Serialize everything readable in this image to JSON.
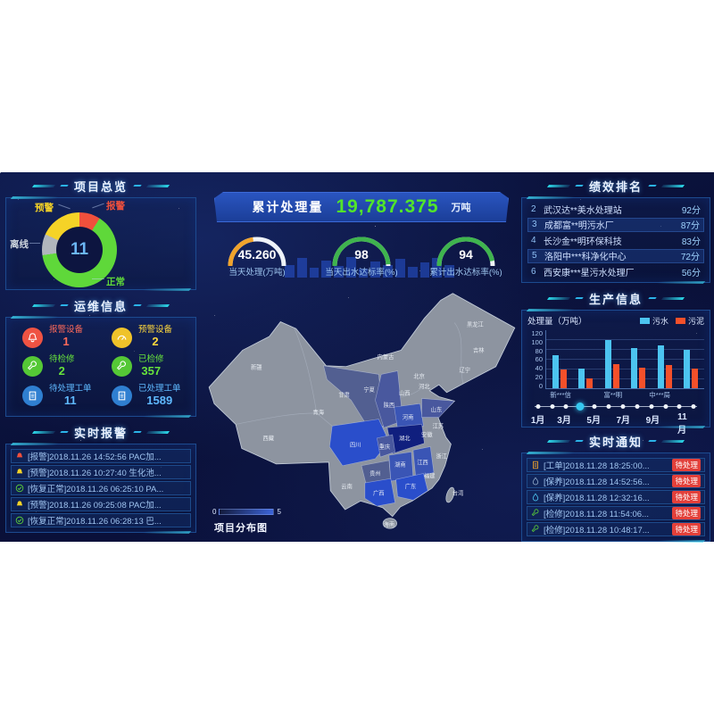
{
  "colors": {
    "background": "#0a1038",
    "panel_border": "#1c4a8f",
    "accent_cyan": "#2bd7e8",
    "text_light": "#cfe3ff",
    "status_red": "#f0503c",
    "status_yellow": "#f5d327",
    "status_green": "#5fd83a",
    "status_gray": "#b0b6bd",
    "banner_value_green": "#52e52a",
    "bar_sewage_cyan": "#4cc4f0",
    "bar_sludge_red": "#f4502a",
    "badge_red": "#e3403a"
  },
  "left": {
    "overview": {
      "title": "项目总览",
      "donut_center": "11",
      "labels": {
        "warning": "预警",
        "alarm": "报警",
        "offline": "离线",
        "normal": "正常"
      }
    },
    "ops": {
      "title": "运维信息",
      "stats": [
        {
          "label": "报警设备",
          "value": "1",
          "icon": "alarm-bell-icon",
          "color": "#ff6a5a"
        },
        {
          "label": "预警设备",
          "value": "2",
          "icon": "gauge-icon",
          "color": "#ffd83d"
        },
        {
          "label": "待检修",
          "value": "2",
          "icon": "wrench-icon",
          "color": "#67e23c"
        },
        {
          "label": "已检修",
          "value": "357",
          "icon": "wrench-icon",
          "color": "#67e23c"
        },
        {
          "label": "待处理工单",
          "value": "11",
          "icon": "worksheet-icon",
          "color": "#5fb9ff"
        },
        {
          "label": "已处理工单",
          "value": "1589",
          "icon": "worksheet-icon",
          "color": "#5fb9ff"
        }
      ]
    },
    "alarms": {
      "title": "实时报警",
      "items": [
        {
          "text": "[报警]2018.11.26 14:52:56 PAC加...",
          "level": "alarm"
        },
        {
          "text": "[预警]2018.11.26 10:27:40 生化池...",
          "level": "warning"
        },
        {
          "text": "[恢复正常]2018.11.26 06:25:10 PA...",
          "level": "ok"
        },
        {
          "text": "[预警]2018.11.26 09:25:08 PAC加...",
          "level": "warning"
        },
        {
          "text": "[恢复正常]2018.11.26 06:28:13 巴...",
          "level": "ok"
        }
      ]
    }
  },
  "center": {
    "banner": {
      "label": "累计处理量",
      "value": "19,787.375",
      "unit": "万吨"
    },
    "gauges": [
      {
        "value": "45.260",
        "label": "当天处理(万吨)"
      },
      {
        "value": "98",
        "label": "当天出水达标率(%)"
      },
      {
        "value": "94",
        "label": "累计出水达标率(%)"
      }
    ],
    "map": {
      "caption": "项目分布图",
      "legend_min": "0",
      "legend_max": "5",
      "labels": [
        "黑龙江",
        "吉林",
        "辽宁",
        "内蒙古",
        "北京",
        "河北",
        "山西",
        "山东",
        "河南",
        "陕西",
        "宁夏",
        "甘肃",
        "青海",
        "新疆",
        "西藏",
        "四川",
        "重庆",
        "湖北",
        "安徽",
        "江苏",
        "浙江",
        "江西",
        "湖南",
        "贵州",
        "云南",
        "广西",
        "广东",
        "福建",
        "海南",
        "台湾"
      ]
    }
  },
  "right": {
    "ranking": {
      "title": "绩效排名",
      "rows": [
        {
          "rank": "2",
          "name": "武汉达**美水处理站",
          "score": "92分"
        },
        {
          "rank": "3",
          "name": "成都富**明污水厂",
          "score": "87分"
        },
        {
          "rank": "4",
          "name": "长沙金**明环保科技",
          "score": "83分"
        },
        {
          "rank": "5",
          "name": "洛阳中***科净化中心",
          "score": "72分"
        },
        {
          "rank": "6",
          "name": "西安康***星污水处理厂",
          "score": "56分"
        }
      ]
    },
    "production": {
      "title": "生产信息",
      "axis_label": "处理量（万吨）",
      "timeline_labels": [
        "1月",
        "3月",
        "5月",
        "7月",
        "9月",
        "11月"
      ],
      "active_month_index": 3
    },
    "notices": {
      "title": "实时通知",
      "items": [
        {
          "text": "[工单]2018.11.28 18:25:00...",
          "badge": "待处理",
          "type": "worksheet"
        },
        {
          "text": "[保养]2018.11.28 14:52:56...",
          "badge": "待处理",
          "type": "maintain"
        },
        {
          "text": "[保养]2018.11.28 12:32:16...",
          "badge": "待处理",
          "type": "maintain"
        },
        {
          "text": "[检修]2018.11.28 11:54:06...",
          "badge": "待处理",
          "type": "repair"
        },
        {
          "text": "[检修]2018.11.28 10:48:17...",
          "badge": "待处理",
          "type": "repair"
        }
      ]
    }
  },
  "chart_data": [
    {
      "type": "pie",
      "title": "项目总览",
      "style": "donut",
      "center_total": 11,
      "labels": [
        "报警",
        "正常",
        "离线",
        "预警"
      ],
      "values": [
        1,
        7,
        1,
        2
      ],
      "colors": [
        "#f0503c",
        "#5fd83a",
        "#b0b6bd",
        "#f5d327"
      ],
      "note": "clockwise from top"
    },
    {
      "type": "gauge",
      "value": 45.26,
      "max": 100,
      "label": "当天处理(万吨)",
      "arc_color": "#f0a32c",
      "track_color": "#eef2f8"
    },
    {
      "type": "gauge",
      "value": 98,
      "max": 100,
      "label": "当天出水达标率(%)",
      "arc_color": "#3fb44e",
      "track_color": "#eef2f8"
    },
    {
      "type": "gauge",
      "value": 94,
      "max": 100,
      "label": "累计出水达标率(%)",
      "arc_color": "#3fb44e",
      "track_color": "#eef2f8"
    },
    {
      "type": "bar",
      "title": "生产信息",
      "ylabel": "处理量（万吨）",
      "ylim": [
        0,
        120
      ],
      "yticks": [
        0,
        20,
        40,
        60,
        80,
        100,
        120
      ],
      "categories": [
        "新***信",
        "",
        "富**明",
        "",
        "中***局",
        ""
      ],
      "series": [
        {
          "name": "污水",
          "color": "#4cc4f0",
          "values": [
            68,
            40,
            100,
            83,
            88,
            80
          ]
        },
        {
          "name": "污泥",
          "color": "#f4502a",
          "values": [
            39,
            20,
            50,
            42,
            48,
            40
          ]
        }
      ],
      "legend_position": "top-right",
      "grid": true
    },
    {
      "type": "heatmap",
      "title": "项目分布图",
      "legend_range": [
        0,
        5
      ],
      "palette": [
        "#8d94a0",
        "#525f91",
        "#49589e",
        "#3a55b5",
        "#2a4ecb",
        "#101f7e"
      ],
      "provinces": [
        {
          "name": "湖北",
          "level": 5
        },
        {
          "name": "四川",
          "level": 4
        },
        {
          "name": "广西",
          "level": 4
        },
        {
          "name": "广东",
          "level": 4
        },
        {
          "name": "河南",
          "level": 3
        },
        {
          "name": "湖南",
          "level": 3
        },
        {
          "name": "江西",
          "level": 3
        },
        {
          "name": "重庆",
          "level": 2
        },
        {
          "name": "山东",
          "level": 2
        },
        {
          "name": "陕西",
          "level": 2
        },
        {
          "name": "甘肃",
          "level": 1
        },
        {
          "name": "贵州",
          "level": 1
        }
      ]
    }
  ]
}
